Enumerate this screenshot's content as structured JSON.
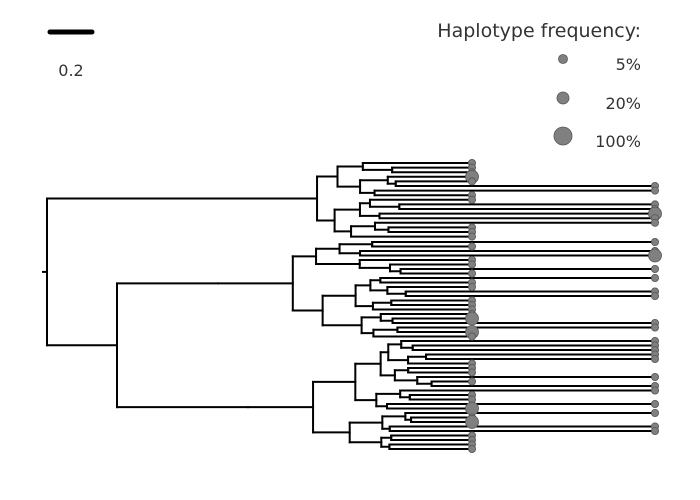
{
  "scale_bar": {
    "label": "0.2"
  },
  "legend": {
    "title": "Haplotype frequency:",
    "items": [
      {
        "label": "5%",
        "frequency": 0.05
      },
      {
        "label": "20%",
        "frequency": 0.2
      },
      {
        "label": "100%",
        "frequency": 1.0
      }
    ]
  },
  "colors": {
    "branch": "#000000",
    "tip_marker": "#808080"
  }
}
